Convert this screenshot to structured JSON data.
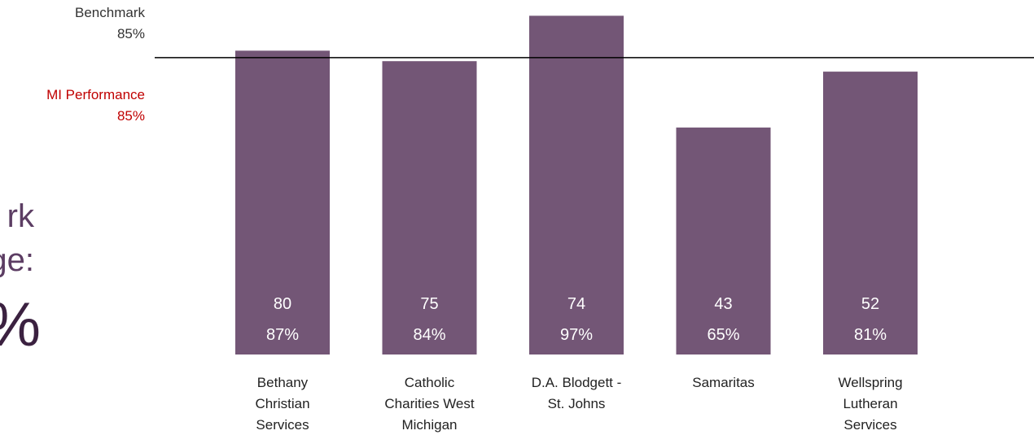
{
  "colors": {
    "bar": "#735676",
    "benchmark_line": "#000000",
    "mi_label": "#c00000",
    "bar_text": "#ffffff"
  },
  "reference_labels": {
    "benchmark_title": "Benchmark",
    "benchmark_value": "85%",
    "mi_title": "MI Performance",
    "mi_value": "85%"
  },
  "side_text": {
    "line1": "rk",
    "line2": "ge:",
    "line3": "%"
  },
  "chart_data": {
    "type": "bar",
    "categories": [
      "Bethany Christian Services",
      "Catholic Charities West Michigan",
      "D.A. Blodgett - St. Johns",
      "Samaritas",
      "Wellspring Lutheran Services"
    ],
    "category_lines": [
      [
        "Bethany",
        "Christian",
        "Services"
      ],
      [
        "Catholic",
        "Charities West",
        "Michigan"
      ],
      [
        "D.A. Blodgett -",
        "St. Johns"
      ],
      [
        "Samaritas"
      ],
      [
        "Wellspring",
        "Lutheran",
        "Services"
      ]
    ],
    "values": [
      87,
      84,
      97,
      65,
      81
    ],
    "value_labels": [
      "87%",
      "84%",
      "97%",
      "65%",
      "81%"
    ],
    "counts": [
      "80",
      "75",
      "74",
      "43",
      "52"
    ],
    "benchmark": 85,
    "ylim": [
      0,
      100
    ],
    "title": "",
    "xlabel": "",
    "ylabel": "",
    "grid": false,
    "legend": "none"
  }
}
